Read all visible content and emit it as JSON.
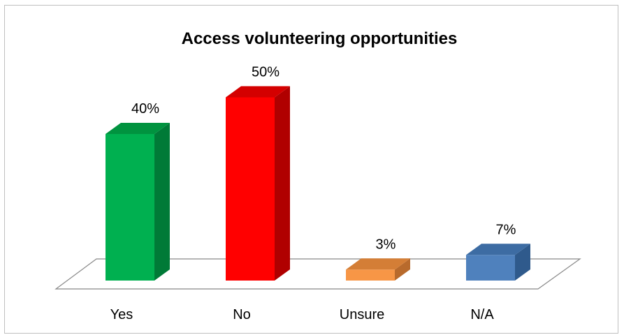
{
  "chart_data": {
    "type": "bar",
    "title": "Access volunteering opportunities",
    "categories": [
      "Yes",
      "No",
      "Unsure",
      "N/A"
    ],
    "values": [
      40,
      50,
      3,
      7
    ],
    "data_labels": [
      "40%",
      "50%",
      "3%",
      "7%"
    ],
    "value_unit": "%",
    "style": "3d-column",
    "legend": "none",
    "grid": false,
    "axes_visible": false,
    "colors": [
      {
        "front": "#00b050",
        "side": "#007a37",
        "top": "#00933f"
      },
      {
        "front": "#ff0000",
        "side": "#b00000",
        "top": "#d40000"
      },
      {
        "front": "#f79646",
        "side": "#b86a2c",
        "top": "#d47e36"
      },
      {
        "front": "#4f81bd",
        "side": "#2f5a8c",
        "top": "#3d6ca3"
      }
    ]
  }
}
